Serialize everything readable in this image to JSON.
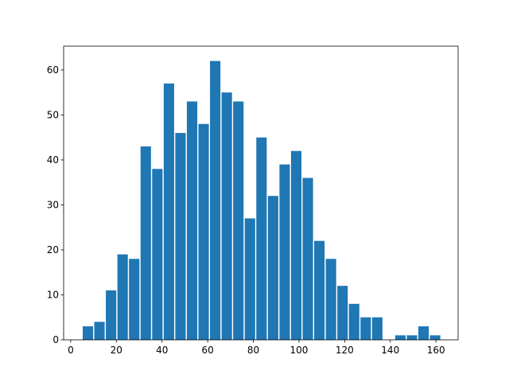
{
  "chart_data": {
    "type": "histogram",
    "bins": [
      5.0,
      10.07,
      15.14,
      20.21,
      25.28,
      30.35,
      35.42,
      40.49,
      45.56,
      50.63,
      55.7,
      60.77,
      65.84,
      70.91,
      75.98,
      81.05,
      86.12,
      91.19,
      96.26,
      101.33,
      106.4,
      111.47,
      116.54,
      121.61,
      126.68,
      131.75,
      136.82,
      141.89,
      146.96,
      152.03,
      157.1,
      162.17
    ],
    "values": [
      3,
      4,
      11,
      19,
      18,
      43,
      38,
      57,
      46,
      53,
      48,
      62,
      55,
      53,
      27,
      45,
      32,
      39,
      42,
      36,
      22,
      18,
      12,
      8,
      5,
      5,
      0,
      1,
      1,
      3,
      1
    ],
    "color": "#1f77b4",
    "xlim": [
      -3.1,
      169.7
    ],
    "xticks": [
      0,
      20,
      40,
      60,
      80,
      100,
      120,
      140,
      160
    ],
    "ylim": [
      0,
      65.3
    ],
    "yticks": [
      0,
      10,
      20,
      30,
      40,
      50,
      60
    ],
    "grid": false
  }
}
